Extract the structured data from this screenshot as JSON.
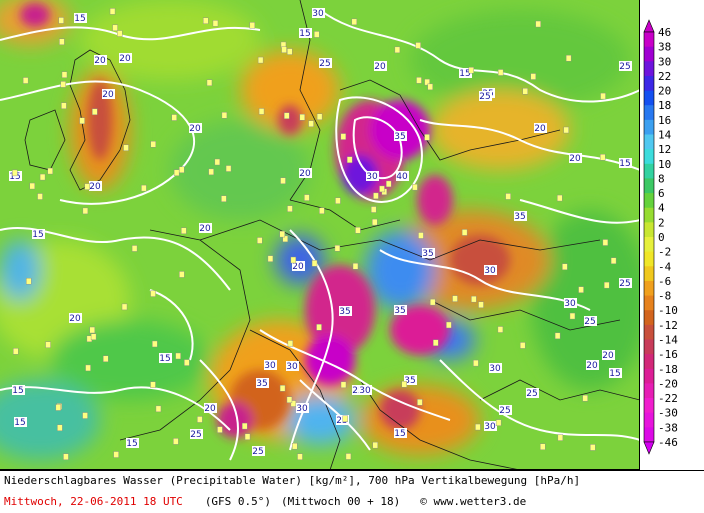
{
  "footer": {
    "description": "Niederschlagbares Wasser (Precipitable Water) [kg/m²], 700 hPa Vertikalbewegung [hPa/h]",
    "date": "Mittwoch, 22-06-2011  18 UTC",
    "model": "(GFS 0.5°)",
    "run": "(Mittwoch 00 + 18)",
    "copyright": "© www.wetter3.de"
  },
  "legend": {
    "labels": [
      "46",
      "38",
      "30",
      "22",
      "20",
      "18",
      "16",
      "14",
      "12",
      "10",
      "8",
      "6",
      "4",
      "2",
      "0",
      "-2",
      "-4",
      "-6",
      "-8",
      "-10",
      "-12",
      "-14",
      "-16",
      "-18",
      "-20",
      "-22",
      "-30",
      "-38",
      "-46"
    ],
    "colors": [
      "#c800c8",
      "#a000d2",
      "#6e14dc",
      "#3c28e6",
      "#1450f0",
      "#2878f0",
      "#3ca0f0",
      "#50c8f0",
      "#3cdcdc",
      "#32d2a0",
      "#3cc864",
      "#64d23c",
      "#96dc32",
      "#c8e632",
      "#e6f03c",
      "#f0e628",
      "#f0c81e",
      "#f0a01e",
      "#e6821e",
      "#d2641e",
      "#c8503c",
      "#c83c5a",
      "#d22878",
      "#dc1e96",
      "#e61eb4",
      "#f01ecd",
      "#e614dc",
      "#dc0ae6",
      "#d200f0"
    ]
  },
  "map": {
    "isobar_labels": [
      "15",
      "20",
      "25",
      "30",
      "35",
      "40"
    ],
    "contour_label_values": [
      "15",
      "20",
      "20",
      "20",
      "15",
      "20",
      "25",
      "15",
      "20",
      "15",
      "20",
      "25",
      "30",
      "35",
      "40",
      "30",
      "20",
      "15",
      "25",
      "35",
      "30",
      "35",
      "35",
      "25",
      "30",
      "25",
      "20",
      "30",
      "35",
      "30",
      "25",
      "25",
      "30",
      "35",
      "15",
      "25",
      "20",
      "25",
      "15",
      "20",
      "15",
      "30",
      "25",
      "20",
      "15",
      "35",
      "30",
      "20",
      "15",
      "25",
      "20",
      "15",
      "25",
      "20",
      "20",
      "15",
      "30",
      "15"
    ]
  }
}
